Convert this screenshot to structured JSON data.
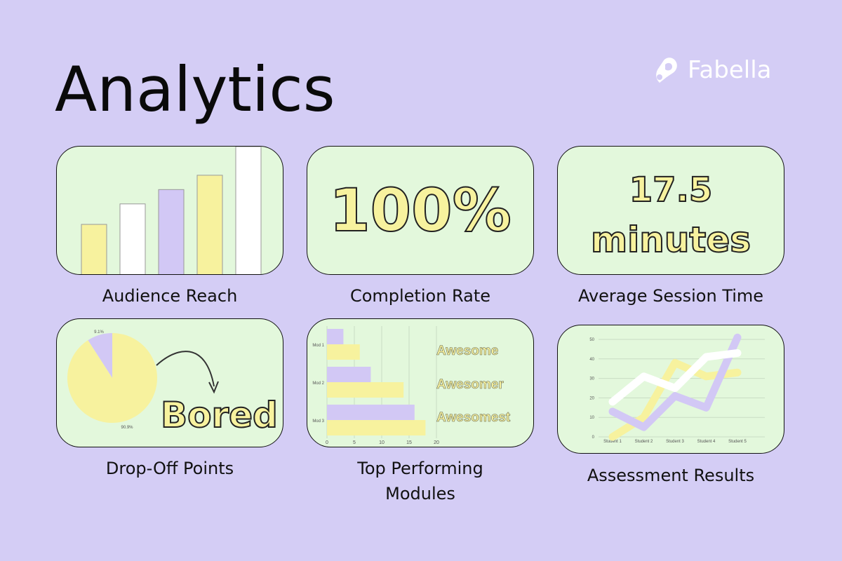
{
  "header": {
    "title": "Analytics",
    "brand": "Fabella"
  },
  "colors": {
    "background": "#d4cdf5",
    "card": "#e3f8dc",
    "yellow": "#f7f29e",
    "purple": "#d2c8f5",
    "white": "#ffffff"
  },
  "cards": {
    "audience_reach": {
      "caption": "Audience Reach"
    },
    "completion_rate": {
      "caption": "Completion Rate",
      "value": "100%"
    },
    "session_time": {
      "caption": "Average Session Time",
      "value_line1": "17.5",
      "value_line2": "minutes"
    },
    "drop_off": {
      "caption": "Drop-Off Points",
      "label": "Bored"
    },
    "top_modules": {
      "caption_line1": "Top Performing",
      "caption_line2": "Modules"
    },
    "assessment": {
      "caption": "Assessment Results"
    }
  },
  "chart_data": [
    {
      "type": "bar",
      "id": "audience_reach",
      "values": [
        25,
        35,
        42,
        49,
        63
      ],
      "colors": [
        "#f7f29e",
        "#ffffff",
        "#d2c8f5",
        "#f7f29e",
        "#ffffff"
      ],
      "ylim": [
        0,
        63
      ]
    },
    {
      "type": "pie",
      "id": "drop_off",
      "slices": [
        {
          "label": "9.1%",
          "value": 9.1,
          "color": "#d2c8f5"
        },
        {
          "label": "90.9%",
          "value": 90.9,
          "color": "#f7f29e"
        }
      ]
    },
    {
      "type": "bar",
      "id": "top_modules",
      "orientation": "horizontal",
      "categories": [
        "Mod 1",
        "Mod 2",
        "Mod 3"
      ],
      "series": [
        {
          "values": [
            3,
            8,
            16
          ],
          "color": "#d2c8f5"
        },
        {
          "values": [
            6,
            14,
            18
          ],
          "color": "#f7f29e"
        }
      ],
      "xticks": [
        0,
        5,
        10,
        15,
        20
      ],
      "xlim": [
        0,
        20
      ],
      "annotations": [
        "Awesome",
        "Awesomer",
        "Awesomest"
      ]
    },
    {
      "type": "line",
      "id": "assessment",
      "categories": [
        "Student 1",
        "Student 2",
        "Student 3",
        "Student 4",
        "Student 5"
      ],
      "yticks": [
        0,
        10,
        20,
        30,
        40,
        50
      ],
      "ylim": [
        0,
        50
      ],
      "series": [
        {
          "values": [
            0,
            10,
            38,
            31,
            33
          ],
          "color": "#f7f29e"
        },
        {
          "values": [
            13,
            5,
            21,
            15,
            51
          ],
          "color": "#d2c8f5"
        },
        {
          "values": [
            18,
            31,
            25,
            41,
            43
          ],
          "color": "#ffffff"
        }
      ]
    }
  ]
}
